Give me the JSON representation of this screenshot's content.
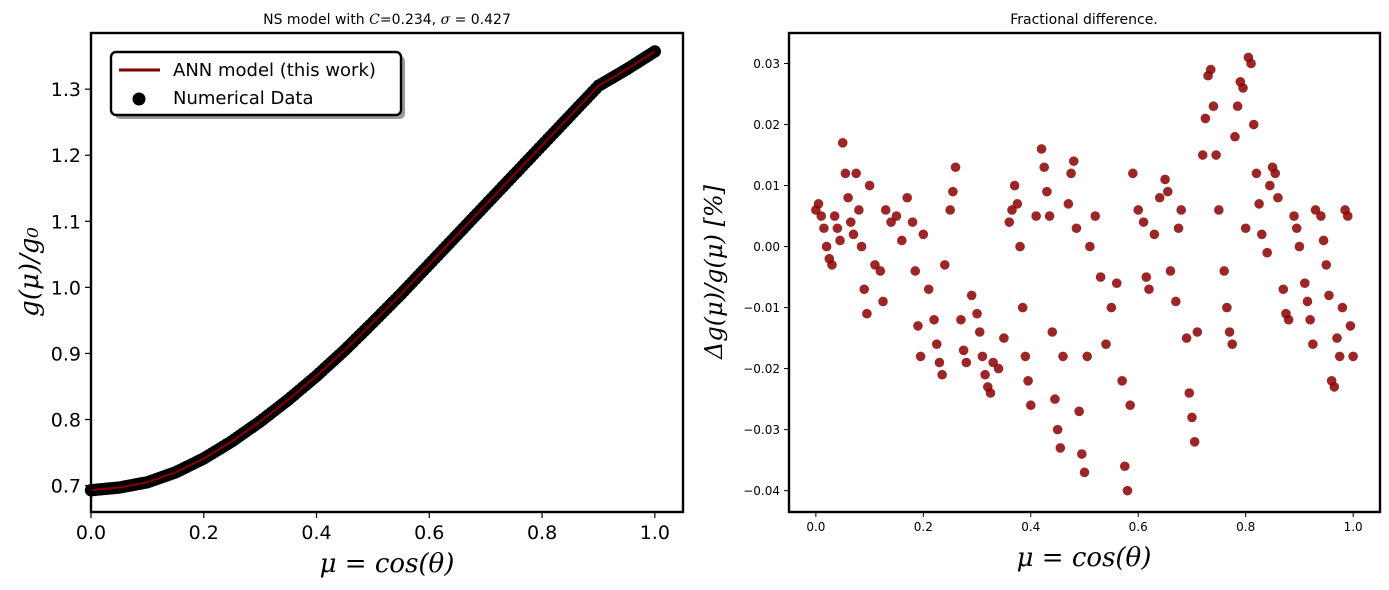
{
  "chart_data": [
    {
      "type": "line",
      "title": "NS model with C=0.234, σ = 0.427",
      "xlabel": "μ = cos(θ)",
      "ylabel": "g(μ)/g₀",
      "xlim": [
        0.0,
        1.05
      ],
      "ylim": [
        0.66,
        1.385
      ],
      "x_ticks": [
        "0.0",
        "0.2",
        "0.4",
        "0.6",
        "0.8",
        "1.0"
      ],
      "y_ticks": [
        "0.7",
        "0.8",
        "0.9",
        "1.0",
        "1.1",
        "1.2",
        "1.3"
      ],
      "grid": false,
      "legend_position": "upper-left",
      "curve_points": [
        [
          0.0,
          0.693
        ],
        [
          0.05,
          0.697
        ],
        [
          0.1,
          0.705
        ],
        [
          0.15,
          0.72
        ],
        [
          0.2,
          0.741
        ],
        [
          0.25,
          0.767
        ],
        [
          0.3,
          0.797
        ],
        [
          0.35,
          0.83
        ],
        [
          0.4,
          0.866
        ],
        [
          0.45,
          0.905
        ],
        [
          0.5,
          0.947
        ],
        [
          0.55,
          0.99
        ],
        [
          0.6,
          1.035
        ],
        [
          0.65,
          1.08
        ],
        [
          0.7,
          1.125
        ],
        [
          0.75,
          1.17
        ],
        [
          0.8,
          1.215
        ],
        [
          0.85,
          1.26
        ],
        [
          0.9,
          1.305
        ],
        [
          0.95,
          1.33
        ],
        [
          1.0,
          1.357
        ]
      ],
      "series": [
        {
          "name": "ANN model (this work)",
          "kind": "line",
          "color": "#7f0000"
        },
        {
          "name": "Numerical Data",
          "kind": "scatter",
          "color": "#000000"
        }
      ]
    },
    {
      "type": "scatter",
      "title": "Fractional difference.",
      "xlabel": "μ = cos(θ)",
      "ylabel": "Δg(μ)/g(μ) [%]",
      "xlim": [
        -0.05,
        1.05
      ],
      "ylim": [
        -0.0435,
        0.035
      ],
      "x_ticks": [
        "0.0",
        "0.2",
        "0.4",
        "0.6",
        "0.8",
        "1.0"
      ],
      "y_ticks": [
        "0.03",
        "0.02",
        "0.01",
        "0.00",
        "−0.01",
        "−0.02",
        "−0.03",
        "−0.04"
      ],
      "grid": false,
      "color": "#8b0000",
      "points": [
        [
          0.0,
          0.006
        ],
        [
          0.005,
          0.007
        ],
        [
          0.01,
          0.005
        ],
        [
          0.015,
          0.003
        ],
        [
          0.02,
          0.0
        ],
        [
          0.025,
          -0.002
        ],
        [
          0.03,
          -0.003
        ],
        [
          0.035,
          0.005
        ],
        [
          0.04,
          0.003
        ],
        [
          0.045,
          0.001
        ],
        [
          0.05,
          0.017
        ],
        [
          0.055,
          0.012
        ],
        [
          0.06,
          0.008
        ],
        [
          0.065,
          0.004
        ],
        [
          0.07,
          0.002
        ],
        [
          0.075,
          0.012
        ],
        [
          0.08,
          0.006
        ],
        [
          0.085,
          0.0
        ],
        [
          0.09,
          -0.007
        ],
        [
          0.095,
          -0.011
        ],
        [
          0.1,
          0.01
        ],
        [
          0.11,
          -0.003
        ],
        [
          0.12,
          -0.004
        ],
        [
          0.125,
          -0.009
        ],
        [
          0.13,
          0.006
        ],
        [
          0.14,
          0.004
        ],
        [
          0.15,
          0.005
        ],
        [
          0.16,
          0.001
        ],
        [
          0.17,
          0.008
        ],
        [
          0.18,
          0.004
        ],
        [
          0.185,
          -0.004
        ],
        [
          0.19,
          -0.013
        ],
        [
          0.195,
          -0.018
        ],
        [
          0.2,
          0.002
        ],
        [
          0.21,
          -0.007
        ],
        [
          0.22,
          -0.012
        ],
        [
          0.225,
          -0.016
        ],
        [
          0.23,
          -0.019
        ],
        [
          0.235,
          -0.021
        ],
        [
          0.24,
          -0.003
        ],
        [
          0.25,
          0.006
        ],
        [
          0.255,
          0.009
        ],
        [
          0.26,
          0.013
        ],
        [
          0.27,
          -0.012
        ],
        [
          0.275,
          -0.017
        ],
        [
          0.28,
          -0.019
        ],
        [
          0.29,
          -0.008
        ],
        [
          0.3,
          -0.011
        ],
        [
          0.305,
          -0.014
        ],
        [
          0.31,
          -0.018
        ],
        [
          0.315,
          -0.021
        ],
        [
          0.32,
          -0.023
        ],
        [
          0.325,
          -0.024
        ],
        [
          0.33,
          -0.019
        ],
        [
          0.34,
          -0.02
        ],
        [
          0.35,
          -0.015
        ],
        [
          0.36,
          0.004
        ],
        [
          0.365,
          0.006
        ],
        [
          0.37,
          0.01
        ],
        [
          0.375,
          0.007
        ],
        [
          0.38,
          0.0
        ],
        [
          0.385,
          -0.01
        ],
        [
          0.39,
          -0.018
        ],
        [
          0.395,
          -0.022
        ],
        [
          0.4,
          -0.026
        ],
        [
          0.41,
          0.005
        ],
        [
          0.42,
          0.016
        ],
        [
          0.425,
          0.013
        ],
        [
          0.43,
          0.009
        ],
        [
          0.435,
          0.005
        ],
        [
          0.44,
          -0.014
        ],
        [
          0.445,
          -0.025
        ],
        [
          0.45,
          -0.03
        ],
        [
          0.455,
          -0.033
        ],
        [
          0.46,
          -0.018
        ],
        [
          0.47,
          0.007
        ],
        [
          0.475,
          0.012
        ],
        [
          0.48,
          0.014
        ],
        [
          0.485,
          0.003
        ],
        [
          0.49,
          -0.027
        ],
        [
          0.495,
          -0.034
        ],
        [
          0.5,
          -0.037
        ],
        [
          0.505,
          -0.018
        ],
        [
          0.51,
          0.0
        ],
        [
          0.52,
          0.005
        ],
        [
          0.53,
          -0.005
        ],
        [
          0.54,
          -0.016
        ],
        [
          0.55,
          -0.01
        ],
        [
          0.56,
          -0.006
        ],
        [
          0.57,
          -0.022
        ],
        [
          0.575,
          -0.036
        ],
        [
          0.58,
          -0.04
        ],
        [
          0.585,
          -0.026
        ],
        [
          0.59,
          0.012
        ],
        [
          0.6,
          0.006
        ],
        [
          0.61,
          0.004
        ],
        [
          0.615,
          -0.005
        ],
        [
          0.62,
          -0.007
        ],
        [
          0.63,
          0.002
        ],
        [
          0.64,
          0.008
        ],
        [
          0.65,
          0.011
        ],
        [
          0.655,
          0.009
        ],
        [
          0.66,
          -0.004
        ],
        [
          0.67,
          -0.009
        ],
        [
          0.675,
          0.003
        ],
        [
          0.68,
          0.006
        ],
        [
          0.69,
          -0.015
        ],
        [
          0.695,
          -0.024
        ],
        [
          0.7,
          -0.028
        ],
        [
          0.705,
          -0.032
        ],
        [
          0.71,
          -0.014
        ],
        [
          0.72,
          0.015
        ],
        [
          0.725,
          0.021
        ],
        [
          0.73,
          0.028
        ],
        [
          0.735,
          0.029
        ],
        [
          0.74,
          0.023
        ],
        [
          0.745,
          0.015
        ],
        [
          0.75,
          0.006
        ],
        [
          0.76,
          -0.004
        ],
        [
          0.765,
          -0.01
        ],
        [
          0.77,
          -0.014
        ],
        [
          0.775,
          -0.016
        ],
        [
          0.78,
          0.018
        ],
        [
          0.785,
          0.023
        ],
        [
          0.79,
          0.027
        ],
        [
          0.795,
          0.026
        ],
        [
          0.8,
          0.003
        ],
        [
          0.805,
          0.031
        ],
        [
          0.81,
          0.03
        ],
        [
          0.815,
          0.02
        ],
        [
          0.82,
          0.012
        ],
        [
          0.825,
          0.007
        ],
        [
          0.83,
          0.002
        ],
        [
          0.84,
          -0.001
        ],
        [
          0.845,
          0.01
        ],
        [
          0.85,
          0.013
        ],
        [
          0.855,
          0.012
        ],
        [
          0.86,
          0.008
        ],
        [
          0.87,
          -0.007
        ],
        [
          0.875,
          -0.011
        ],
        [
          0.88,
          -0.012
        ],
        [
          0.89,
          0.005
        ],
        [
          0.895,
          0.003
        ],
        [
          0.9,
          0.0
        ],
        [
          0.91,
          -0.006
        ],
        [
          0.915,
          -0.009
        ],
        [
          0.92,
          -0.012
        ],
        [
          0.925,
          -0.016
        ],
        [
          0.93,
          0.006
        ],
        [
          0.94,
          0.005
        ],
        [
          0.945,
          0.001
        ],
        [
          0.95,
          -0.003
        ],
        [
          0.955,
          -0.008
        ],
        [
          0.96,
          -0.022
        ],
        [
          0.965,
          -0.023
        ],
        [
          0.97,
          -0.015
        ],
        [
          0.975,
          -0.018
        ],
        [
          0.98,
          -0.01
        ],
        [
          0.985,
          0.006
        ],
        [
          0.99,
          0.005
        ],
        [
          0.995,
          -0.013
        ],
        [
          1.0,
          -0.018
        ]
      ]
    }
  ],
  "left_panel": {
    "title_prefix": "NS model with ",
    "title_C": "C",
    "title_mid": "=0.234, ",
    "title_sigma": "σ",
    "title_suffix": " = 0.427",
    "xlabel": "μ = cos(θ)",
    "ylabel": "g(μ)/g₀",
    "legend": {
      "line_label": "ANN model (this work)",
      "scatter_label": "Numerical Data"
    }
  },
  "right_panel": {
    "title": "Fractional difference.",
    "xlabel": "μ = cos(θ)",
    "ylabel": "Δg(μ)/g(μ) [%]"
  }
}
